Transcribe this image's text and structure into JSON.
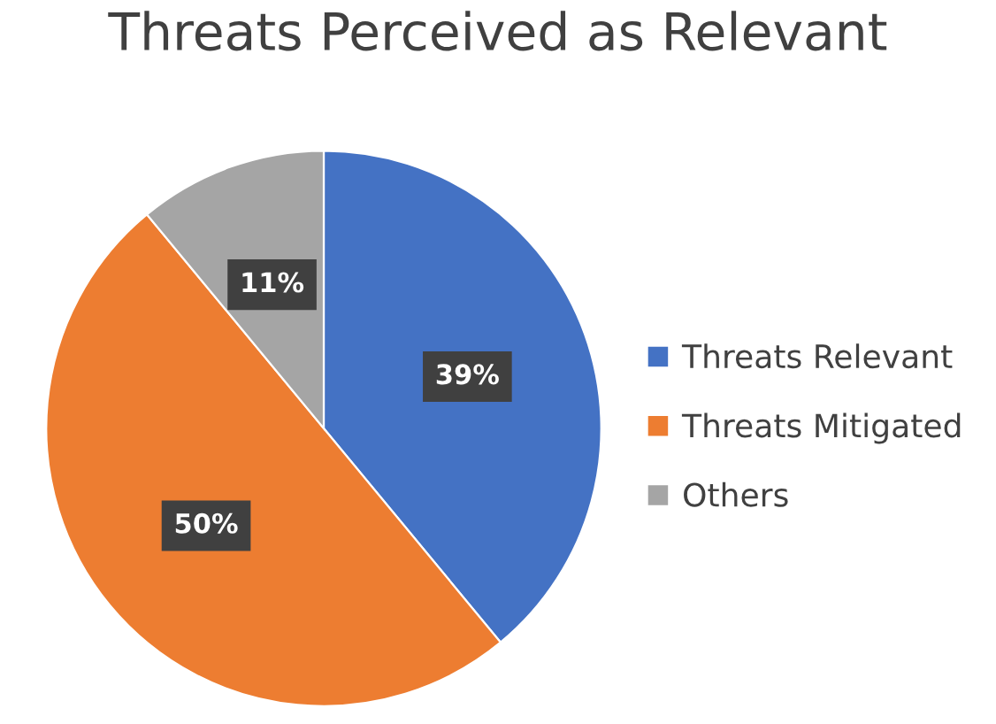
{
  "chart_data": {
    "type": "pie",
    "title": "Threats Perceived as Relevant",
    "categories": [
      "Threats Relevant",
      "Threats Mitigated",
      "Others"
    ],
    "values": [
      39,
      50,
      11
    ],
    "colors": [
      "#4472c4",
      "#ed7d31",
      "#a5a5a5"
    ],
    "value_labels": [
      "39%",
      "50%",
      "11%"
    ],
    "legend": "right"
  }
}
